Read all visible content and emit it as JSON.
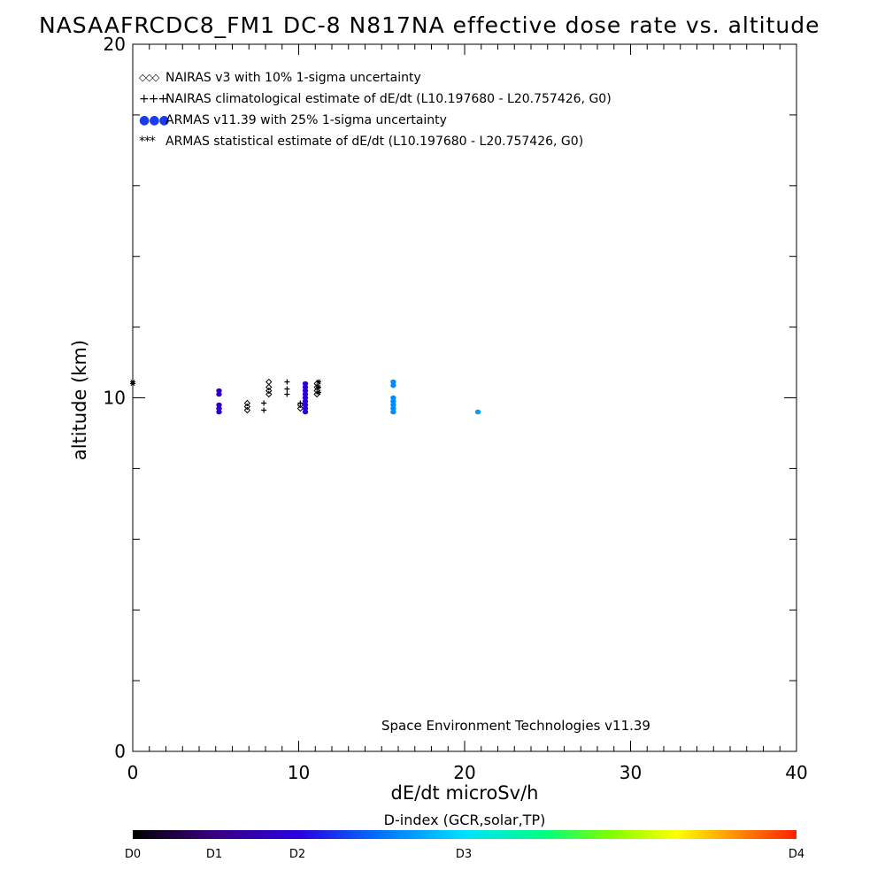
{
  "chart_data": {
    "type": "scatter",
    "title": "NASAAFRCDC8_FM1 DC-8    N817NA effective dose rate vs. altitude",
    "xlabel": "dE/dt microSv/h",
    "ylabel": "altitude (km)",
    "xlim": [
      0,
      40
    ],
    "ylim": [
      0,
      20
    ],
    "x_ticks": [
      "0",
      "10",
      "20",
      "30",
      "40"
    ],
    "y_ticks": [
      "0",
      "10",
      "20"
    ],
    "legend_placement": "top-left",
    "legend": [
      {
        "symbol": "◇◇◇",
        "label": "NAIRAS v3 with 10% 1-sigma uncertainty"
      },
      {
        "symbol": "+++",
        "label": "NAIRAS climatological estimate of dE/dt (L10.197680 - L20.757426, G0)"
      },
      {
        "symbol": "●●●",
        "label": "ARMAS v11.39 with 25% 1-sigma uncertainty"
      },
      {
        "symbol": "***",
        "label": "ARMAS statistical estimate of dE/dt (L10.197680 - L20.757426, G0)"
      }
    ],
    "series": [
      {
        "name": "NAIRAS v3 with 10% 1-sigma uncertainty",
        "marker": "diamond",
        "color": "#000000",
        "points": [
          [
            6.9,
            9.65
          ],
          [
            6.9,
            9.75
          ],
          [
            6.9,
            9.85
          ],
          [
            8.2,
            10.1
          ],
          [
            8.2,
            10.2
          ],
          [
            8.2,
            10.3
          ],
          [
            8.2,
            10.45
          ],
          [
            10.1,
            9.7
          ],
          [
            10.1,
            9.8
          ],
          [
            11.1,
            10.1
          ],
          [
            11.1,
            10.2
          ],
          [
            11.1,
            10.3
          ],
          [
            11.1,
            10.4
          ]
        ]
      },
      {
        "name": "NAIRAS climatological estimate of dE/dt (L10.197680 - L20.757426, G0)",
        "marker": "plus",
        "color": "#000000",
        "points": [
          [
            7.9,
            9.65
          ],
          [
            7.9,
            9.85
          ],
          [
            9.3,
            10.1
          ],
          [
            9.3,
            10.25
          ],
          [
            9.3,
            10.45
          ],
          [
            10.1,
            9.85
          ]
        ]
      },
      {
        "name": "ARMAS v11.39 with 25% 1-sigma uncertainty",
        "marker": "dot",
        "points": [
          [
            5.2,
            9.6,
            0.9
          ],
          [
            5.2,
            9.7,
            0.9
          ],
          [
            5.2,
            9.8,
            0.9
          ],
          [
            5.2,
            10.1,
            0.9
          ],
          [
            5.2,
            10.2,
            0.9
          ],
          [
            10.4,
            9.6,
            0.95
          ],
          [
            10.4,
            9.7,
            0.95
          ],
          [
            10.4,
            9.8,
            0.95
          ],
          [
            10.4,
            9.9,
            0.95
          ],
          [
            10.4,
            10.0,
            0.95
          ],
          [
            10.4,
            10.1,
            0.95
          ],
          [
            10.4,
            10.2,
            0.95
          ],
          [
            10.4,
            10.3,
            0.95
          ],
          [
            10.4,
            10.4,
            0.95
          ],
          [
            15.7,
            9.6,
            1.6
          ],
          [
            15.7,
            9.7,
            1.6
          ],
          [
            15.7,
            9.8,
            1.6
          ],
          [
            15.7,
            9.9,
            1.6
          ],
          [
            15.7,
            10.0,
            1.6
          ],
          [
            15.7,
            10.35,
            1.6
          ],
          [
            15.7,
            10.45,
            1.6
          ],
          [
            20.8,
            9.6,
            1.7
          ]
        ]
      },
      {
        "name": "ARMAS statistical estimate of dE/dt (L10.197680 - L20.757426, G0)",
        "marker": "star",
        "color": "#000000",
        "points": [
          [
            0.0,
            10.4
          ],
          [
            0.0,
            10.45
          ],
          [
            11.2,
            10.15
          ],
          [
            11.2,
            10.3
          ],
          [
            11.2,
            10.45
          ]
        ]
      }
    ],
    "credit": "Space Environment Technologies v11.39",
    "colorbar": {
      "label": "D-index (GCR,solar,TP)",
      "ticks": [
        {
          "label": "D0",
          "value": 0
        },
        {
          "label": "D1",
          "value": 1
        },
        {
          "label": "D2",
          "value": 2
        },
        {
          "label": "D3",
          "value": 3
        },
        {
          "label": "D4",
          "value": 4
        }
      ]
    }
  }
}
